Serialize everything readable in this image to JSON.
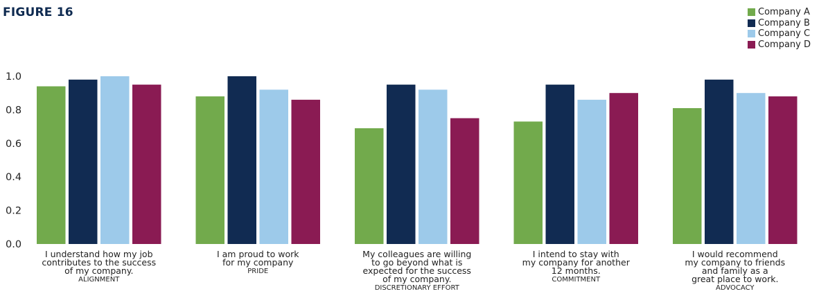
{
  "figure_title": "FIGURE 16",
  "legend": [
    {
      "label": "Company A",
      "color": "#72aa4c"
    },
    {
      "label": "Company B",
      "color": "#112b52"
    },
    {
      "label": "Company C",
      "color": "#9dcaea"
    },
    {
      "label": "Company D",
      "color": "#8a1b53"
    }
  ],
  "chart_data": {
    "type": "bar",
    "title": "FIGURE 16",
    "xlabel": "",
    "ylabel": "",
    "ylim": [
      0,
      1.0
    ],
    "yticks": [
      "0.0",
      "0.2",
      "0.4",
      "0.6",
      "0.8",
      "1.0"
    ],
    "grid": false,
    "legend_position": "top-right",
    "categories": [
      {
        "lines": [
          "I understand how my job",
          "contributes to the success",
          "of my company."
        ],
        "tag": "ALIGNMENT"
      },
      {
        "lines": [
          "I am proud to work",
          "for my company"
        ],
        "tag": "PRIDE"
      },
      {
        "lines": [
          "My colleagues are willing",
          "to go beyond what is",
          "expected for the success",
          "of my company."
        ],
        "tag": "DISCRETIONARY EFFORT"
      },
      {
        "lines": [
          "I intend to stay with",
          "my company for another",
          "12 months."
        ],
        "tag": "COMMITMENT"
      },
      {
        "lines": [
          "I would recommend",
          "my company to friends",
          "and family as a",
          "great place to work."
        ],
        "tag": "ADVOCACY"
      }
    ],
    "series": [
      {
        "name": "Company A",
        "color": "#72aa4c",
        "values": [
          0.94,
          0.88,
          0.69,
          0.73,
          0.81
        ]
      },
      {
        "name": "Company B",
        "color": "#112b52",
        "values": [
          0.98,
          1.0,
          0.95,
          0.95,
          0.98
        ]
      },
      {
        "name": "Company C",
        "color": "#9dcaea",
        "values": [
          1.0,
          0.92,
          0.92,
          0.86,
          0.9
        ]
      },
      {
        "name": "Company D",
        "color": "#8a1b53",
        "values": [
          0.95,
          0.86,
          0.75,
          0.9,
          0.88
        ]
      }
    ]
  }
}
